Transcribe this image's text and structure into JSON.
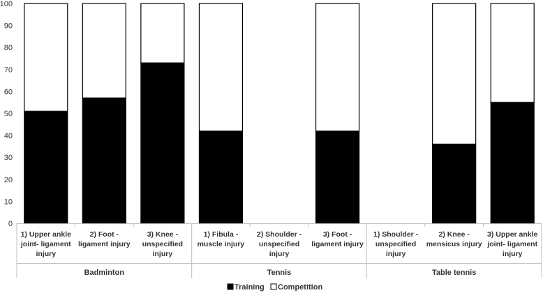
{
  "chart_data": {
    "type": "bar",
    "stacked": true,
    "ylim": [
      0,
      100
    ],
    "yticks": [
      0,
      10,
      20,
      30,
      40,
      50,
      60,
      70,
      80,
      90,
      100
    ],
    "legend_position": "bottom",
    "grid": false,
    "categories": [
      {
        "lines": [
          "1) Upper ankle",
          "joint- ligament",
          "injury"
        ],
        "group": "Badminton"
      },
      {
        "lines": [
          "2) Foot -",
          "ligament injury"
        ],
        "group": "Badminton"
      },
      {
        "lines": [
          "3) Knee -",
          "unspecified",
          "injury"
        ],
        "group": "Badminton"
      },
      {
        "lines": [
          "1) Fibula -",
          "muscle injury"
        ],
        "group": "Tennis"
      },
      {
        "lines": [
          "2) Shoulder -",
          "unspecified",
          "injury"
        ],
        "group": "Tennis"
      },
      {
        "lines": [
          "3) Foot -",
          "ligament injury"
        ],
        "group": "Tennis"
      },
      {
        "lines": [
          "1) Shoulder -",
          "unspecified",
          "injury"
        ],
        "group": "Table tennis"
      },
      {
        "lines": [
          "2) Knee -",
          "mensicus injury"
        ],
        "group": "Table tennis"
      },
      {
        "lines": [
          "3) Upper ankle",
          "joint- ligament",
          "injury"
        ],
        "group": "Table tennis"
      }
    ],
    "groups": [
      "Badminton",
      "Tennis",
      "Table tennis"
    ],
    "series": [
      {
        "name": "Training",
        "color": "#000000",
        "values": [
          51,
          57,
          73,
          42,
          0,
          42,
          0,
          36,
          55
        ]
      },
      {
        "name": "Competition",
        "color": "#ffffff",
        "values": [
          49,
          43,
          27,
          58,
          0,
          58,
          0,
          64,
          45
        ]
      }
    ]
  }
}
